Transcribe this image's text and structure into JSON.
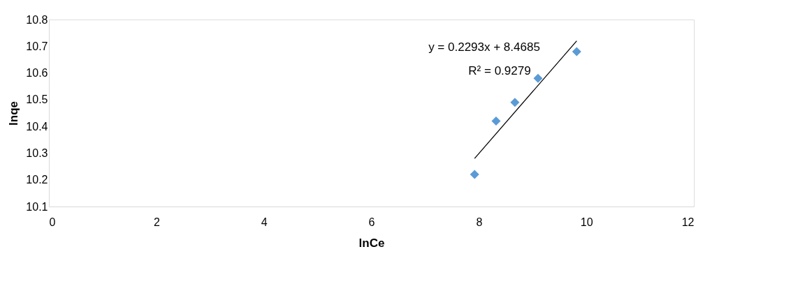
{
  "chart_data": {
    "type": "scatter",
    "xlabel": "lnCe",
    "ylabel": "lnqe",
    "xlim": [
      0,
      12
    ],
    "xticks": [
      0,
      2,
      4,
      6,
      8,
      10,
      12
    ],
    "ylim": [
      10.1,
      10.8
    ],
    "yticks": [
      10.1,
      10.2,
      10.3,
      10.4,
      10.5,
      10.6,
      10.7,
      10.8
    ],
    "series": [
      {
        "color": "#5b9bd5",
        "marker": "diamond",
        "x": [
          7.92,
          8.32,
          8.67,
          9.1,
          9.82
        ],
        "values": [
          10.22,
          10.42,
          10.49,
          10.58,
          10.68
        ]
      },
      {
        "type": "line",
        "color": "#000000",
        "x": [
          7.92,
          9.82
        ],
        "values": [
          10.28,
          10.72
        ]
      }
    ],
    "annotations": [
      "y = 0.2293x + 8.4685",
      "R² = 0.9279"
    ]
  }
}
